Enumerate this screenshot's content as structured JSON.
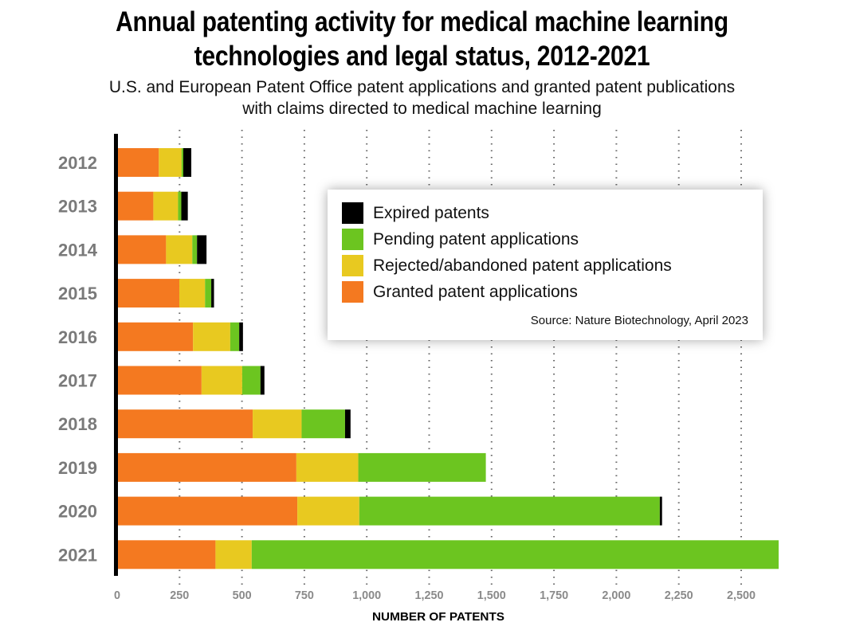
{
  "chart_data": {
    "type": "bar",
    "orientation": "horizontal",
    "stacked": true,
    "title": "Annual patenting activity for medical machine learning technologies and legal status, 2012-2021",
    "title_lines": [
      "Annual patenting activity for medical machine learning",
      "technologies and legal status, 2012-2021"
    ],
    "subtitle_lines": [
      "U.S. and European Patent Office patent applications and granted patent publications",
      "with claims directed to medical machine learning"
    ],
    "xlabel": "NUMBER OF PATENTS",
    "ylabel": "",
    "xlim": [
      0,
      2650
    ],
    "xticks": [
      0,
      250,
      500,
      750,
      1000,
      1250,
      1500,
      1750,
      2000,
      2250,
      2500
    ],
    "xtick_labels": [
      "0",
      "250",
      "500",
      "750",
      "1,000",
      "1,250",
      "1,500",
      "1,750",
      "2,000",
      "2,250",
      "2,500"
    ],
    "grid": "vertical dotted",
    "categories": [
      "2012",
      "2013",
      "2014",
      "2015",
      "2016",
      "2017",
      "2018",
      "2019",
      "2020",
      "2021"
    ],
    "series": [
      {
        "name": "Granted patent applications",
        "color": "#f47920",
        "values": [
          167,
          145,
          196,
          249,
          304,
          338,
          543,
          718,
          722,
          394
        ]
      },
      {
        "name": "Rejected/abandoned patent applications",
        "color": "#e8c920",
        "values": [
          91,
          99,
          105,
          103,
          149,
          163,
          196,
          248,
          248,
          145
        ]
      },
      {
        "name": "Pending patent applications",
        "color": "#6cc520",
        "values": [
          7,
          13,
          19,
          25,
          36,
          73,
          174,
          511,
          1204,
          2111
        ]
      },
      {
        "name": "Expired patents",
        "color": "#000000",
        "values": [
          32,
          26,
          38,
          11,
          15,
          16,
          22,
          0,
          9,
          0
        ]
      }
    ],
    "legend_order": [
      "Expired patents",
      "Pending patent applications",
      "Rejected/abandoned patent applications",
      "Granted patent applications"
    ],
    "legend_placement": "upper-right",
    "source": "Source: Nature Biotechnology, April 2023"
  }
}
